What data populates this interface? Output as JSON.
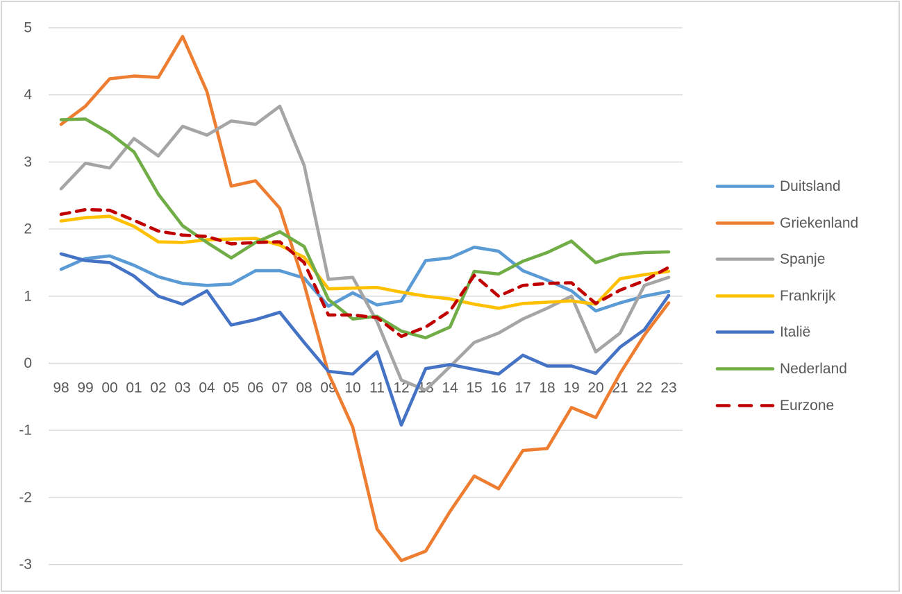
{
  "chart": {
    "background_color": "#FFFFFF",
    "frame_border_color": "#D6D6D6",
    "grid_color": "#D9D9D9",
    "axis_text_color": "#595959",
    "legend_text_color": "#595959",
    "y_axis_labels": [
      "5",
      "4",
      "3",
      "2",
      "1",
      "0",
      "-1",
      "-2",
      "-3"
    ],
    "x_axis_labels": [
      "98",
      "99",
      "00",
      "01",
      "02",
      "03",
      "04",
      "05",
      "06",
      "07",
      "08",
      "09",
      "10",
      "11",
      "12",
      "13",
      "14",
      "15",
      "16",
      "17",
      "18",
      "19",
      "20",
      "21",
      "22",
      "23"
    ]
  },
  "chart_data": {
    "type": "line",
    "title": "",
    "xlabel": "",
    "ylabel": "",
    "categories": [
      "98",
      "99",
      "00",
      "01",
      "02",
      "03",
      "04",
      "05",
      "06",
      "07",
      "08",
      "09",
      "10",
      "11",
      "12",
      "13",
      "14",
      "15",
      "16",
      "17",
      "18",
      "19",
      "20",
      "21",
      "22",
      "23"
    ],
    "ylim": [
      -3,
      5
    ],
    "ytick_step": 1,
    "grid": true,
    "legend_position": "right",
    "series": [
      {
        "name": "Duitsland",
        "color": "#5B9BD5",
        "dash": false,
        "values": [
          1.4,
          1.56,
          1.6,
          1.46,
          1.29,
          1.19,
          1.16,
          1.18,
          1.38,
          1.38,
          1.27,
          0.85,
          1.05,
          0.87,
          0.93,
          1.53,
          1.57,
          1.73,
          1.67,
          1.38,
          1.24,
          1.08,
          0.78,
          0.9,
          1.0,
          1.07
        ]
      },
      {
        "name": "Griekenland",
        "color": "#ED7D31",
        "dash": false,
        "values": [
          3.56,
          3.83,
          4.24,
          4.28,
          4.26,
          4.87,
          4.05,
          2.64,
          2.72,
          2.31,
          1.18,
          -0.15,
          -0.95,
          -2.47,
          -2.94,
          -2.8,
          -2.21,
          -1.68,
          -1.87,
          -1.3,
          -1.27,
          -0.66,
          -0.81,
          -0.15,
          0.42,
          0.9
        ]
      },
      {
        "name": "Spanje",
        "color": "#A5A5A5",
        "dash": false,
        "values": [
          2.6,
          2.98,
          2.91,
          3.35,
          3.09,
          3.53,
          3.4,
          3.61,
          3.56,
          3.83,
          2.95,
          1.25,
          1.28,
          0.62,
          -0.25,
          -0.4,
          -0.05,
          0.31,
          0.45,
          0.66,
          0.82,
          1.0,
          0.17,
          0.45,
          1.16,
          1.28
        ]
      },
      {
        "name": "Frankrijk",
        "color": "#FFC000",
        "dash": false,
        "values": [
          2.12,
          2.17,
          2.19,
          2.04,
          1.81,
          1.8,
          1.84,
          1.85,
          1.86,
          1.76,
          1.58,
          1.11,
          1.12,
          1.13,
          1.06,
          1.0,
          0.96,
          0.88,
          0.82,
          0.89,
          0.91,
          0.93,
          0.88,
          1.26,
          1.32,
          1.37
        ]
      },
      {
        "name": "Italië",
        "color": "#4472C4",
        "dash": false,
        "values": [
          1.63,
          1.53,
          1.5,
          1.3,
          1.0,
          0.88,
          1.08,
          0.57,
          0.65,
          0.76,
          0.31,
          -0.12,
          -0.16,
          0.17,
          -0.92,
          -0.08,
          -0.02,
          -0.09,
          -0.16,
          0.12,
          -0.04,
          -0.04,
          -0.15,
          0.24,
          0.5,
          1.01
        ]
      },
      {
        "name": "Nederland",
        "color": "#70AD47",
        "dash": false,
        "values": [
          3.63,
          3.64,
          3.43,
          3.15,
          2.52,
          2.05,
          1.8,
          1.57,
          1.8,
          1.96,
          1.74,
          0.95,
          0.66,
          0.7,
          0.48,
          0.38,
          0.54,
          1.37,
          1.33,
          1.52,
          1.65,
          1.82,
          1.5,
          1.62,
          1.65,
          1.66
        ]
      },
      {
        "name": "Eurzone",
        "color": "#C00000",
        "dash": true,
        "values": [
          2.22,
          2.29,
          2.28,
          2.13,
          1.97,
          1.91,
          1.89,
          1.78,
          1.8,
          1.81,
          1.5,
          0.72,
          0.72,
          0.68,
          0.4,
          0.54,
          0.78,
          1.31,
          1.0,
          1.16,
          1.19,
          1.2,
          0.89,
          1.09,
          1.23,
          1.43
        ]
      }
    ]
  }
}
